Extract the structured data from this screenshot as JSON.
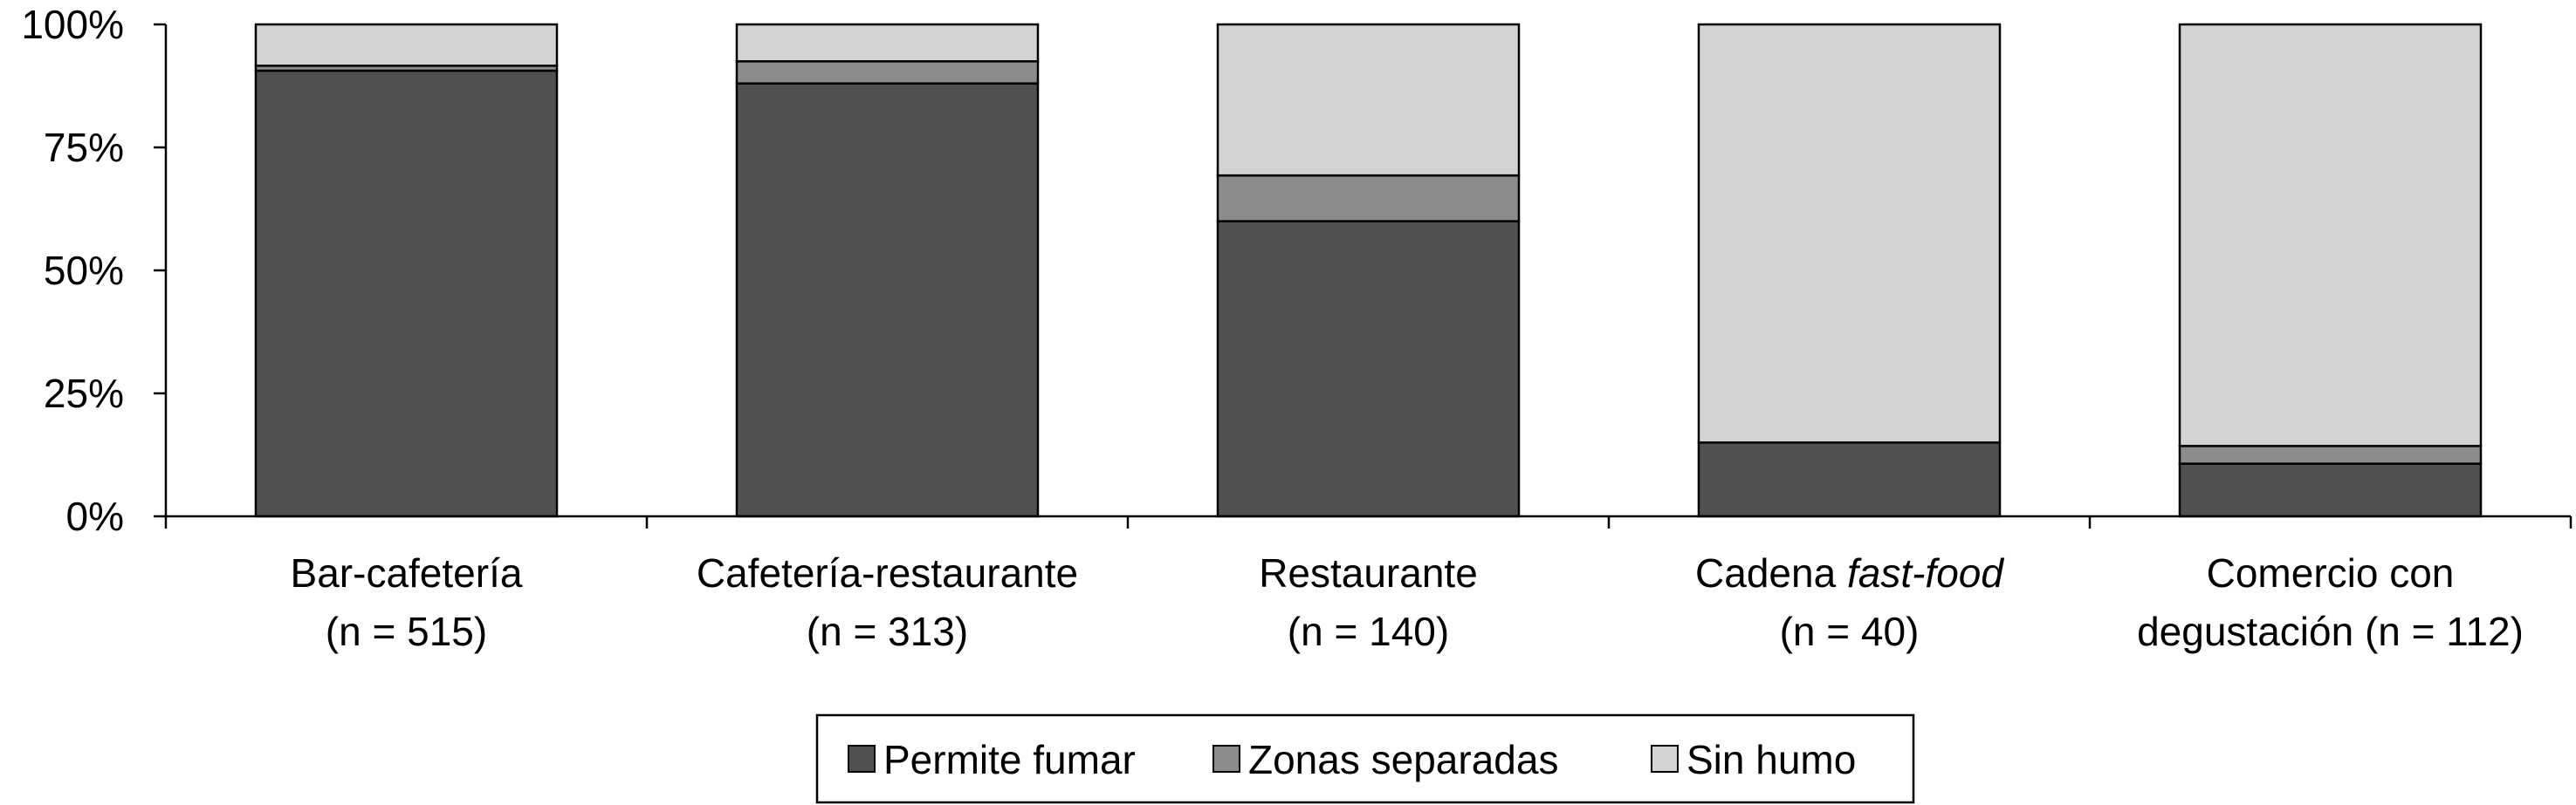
{
  "chart_data": {
    "type": "bar",
    "stacked": true,
    "percent": true,
    "categories": [
      {
        "line1": "Bar-cafetería",
        "line1_italic": "",
        "line2": "(n = 515)"
      },
      {
        "line1": "Cafetería-restaurante",
        "line1_italic": "",
        "line2": "(n = 313)"
      },
      {
        "line1": "Restaurante",
        "line1_italic": "",
        "line2": "(n = 140)"
      },
      {
        "line1": "Cadena ",
        "line1_italic": "fast-food",
        "line2": "(n = 40)"
      },
      {
        "line1": "Comercio con",
        "line1_italic": "",
        "line2": "degustación (n = 112)"
      }
    ],
    "series": [
      {
        "name": "Permite fumar",
        "color": "#505050",
        "values": [
          90.6,
          88.0,
          60.0,
          15.0,
          10.7
        ]
      },
      {
        "name": "Zonas separadas",
        "color": "#8c8c8c",
        "values": [
          1.0,
          4.5,
          9.3,
          0.0,
          3.6
        ]
      },
      {
        "name": "Sin humo",
        "color": "#d3d3d3",
        "values": [
          8.4,
          7.5,
          30.7,
          85.0,
          85.7
        ]
      }
    ],
    "yticks": [
      "0%",
      "25%",
      "50%",
      "75%",
      "100%"
    ],
    "ylim": [
      0,
      100
    ],
    "legend_position": "bottom"
  }
}
